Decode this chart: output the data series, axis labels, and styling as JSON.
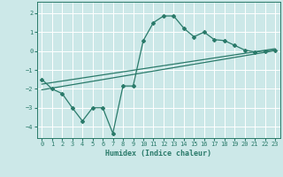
{
  "xlabel": "Humidex (Indice chaleur)",
  "xlim": [
    -0.5,
    23.5
  ],
  "ylim": [
    -4.6,
    2.6
  ],
  "yticks": [
    2,
    1,
    0,
    -1,
    -2,
    -3,
    -4
  ],
  "xticks": [
    0,
    1,
    2,
    3,
    4,
    5,
    6,
    7,
    8,
    9,
    10,
    11,
    12,
    13,
    14,
    15,
    16,
    17,
    18,
    19,
    20,
    21,
    22,
    23
  ],
  "bg_color": "#cce8e8",
  "grid_color": "#ffffff",
  "line_color": "#2a7a6a",
  "line1_x": [
    0,
    1,
    2,
    3,
    4,
    5,
    6,
    7,
    8,
    9,
    10,
    11,
    12,
    13,
    14,
    15,
    16,
    17,
    18,
    19,
    20,
    21,
    22,
    23
  ],
  "line1_y": [
    -1.5,
    -2.0,
    -2.25,
    -3.0,
    -3.7,
    -3.0,
    -3.0,
    -4.35,
    -1.85,
    -1.85,
    0.55,
    1.5,
    1.85,
    1.85,
    1.2,
    0.75,
    1.0,
    0.6,
    0.55,
    0.3,
    0.05,
    -0.05,
    0.0,
    0.05
  ],
  "line2_x": [
    0,
    23
  ],
  "line2_y": [
    -2.05,
    0.02
  ],
  "line3_x": [
    0,
    23
  ],
  "line3_y": [
    -1.75,
    0.12
  ]
}
